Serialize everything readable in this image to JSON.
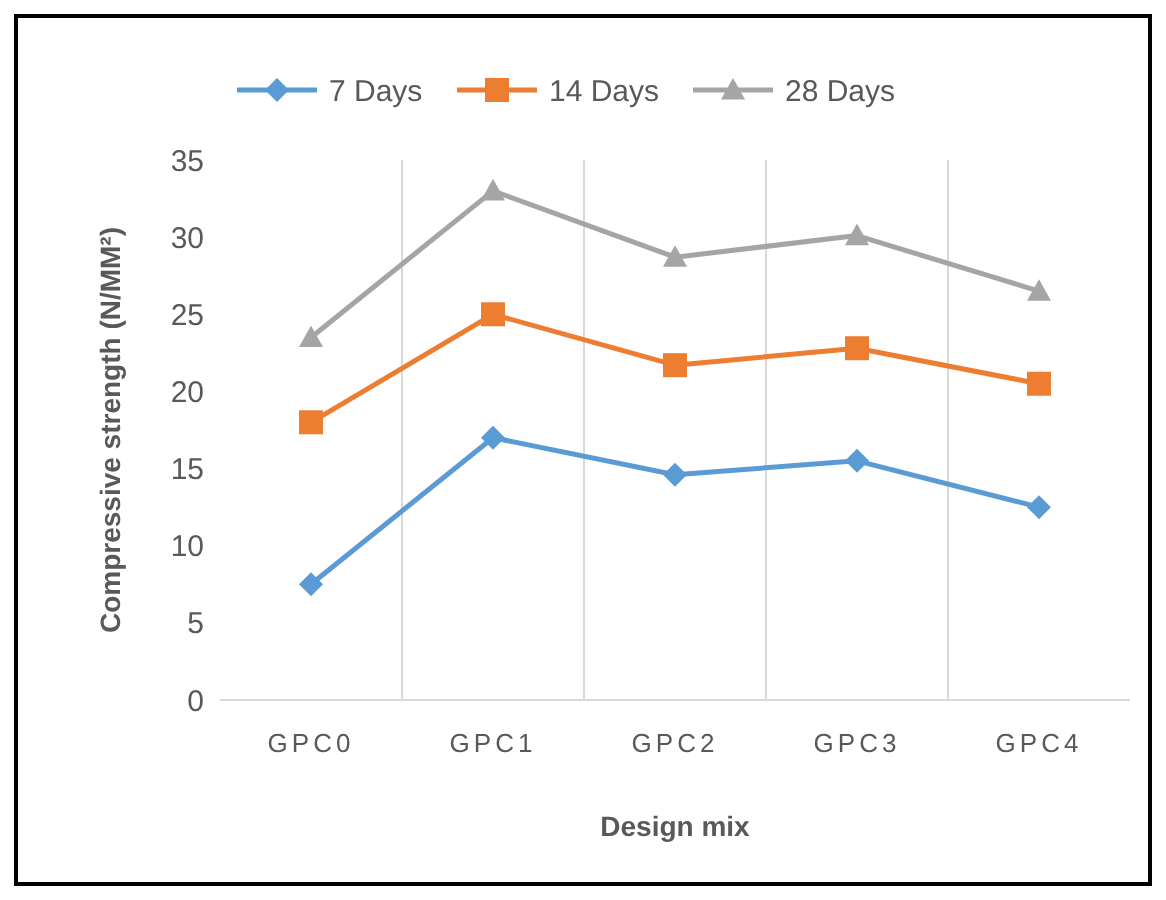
{
  "chart_data": {
    "type": "line",
    "xlabel": "Design mix",
    "ylabel": "Compressive strength (N/MM²)",
    "categories": [
      "GPC0",
      "GPC1",
      "GPC2",
      "GPC3",
      "GPC4"
    ],
    "series": [
      {
        "name": "7 Days",
        "color": "#5b9bd5",
        "marker": "diamond",
        "values": [
          7.5,
          17,
          14.6,
          15.5,
          12.5
        ]
      },
      {
        "name": "14 Days",
        "color": "#ed7d31",
        "marker": "square",
        "values": [
          18,
          25,
          21.7,
          22.8,
          20.5
        ]
      },
      {
        "name": "28 Days",
        "color": "#a5a5a5",
        "marker": "triangle",
        "values": [
          23.5,
          33,
          28.7,
          30.1,
          26.5
        ]
      }
    ],
    "ylim": [
      0,
      35
    ],
    "yticks": [
      0,
      5,
      10,
      15,
      20,
      25,
      30,
      35
    ],
    "grid": "x",
    "legend": "top",
    "line_style": "solid"
  }
}
